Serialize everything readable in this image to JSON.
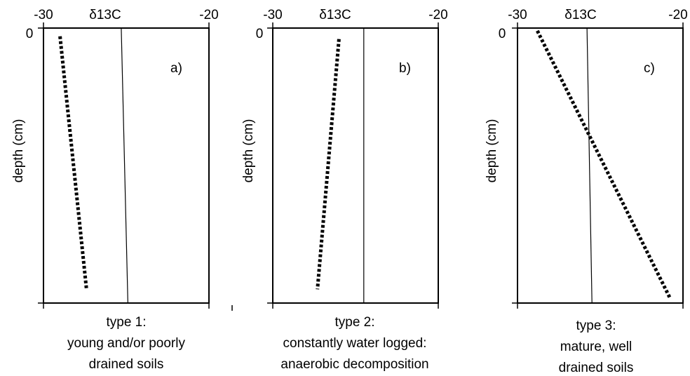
{
  "chart_data": [
    {
      "type": "line",
      "panel_label": "a)",
      "xlabel": "δ13C",
      "ylabel": "depth (cm)",
      "x_ticks": [
        "-30",
        "-20"
      ],
      "y_ticks": [
        "0"
      ],
      "xlim": [
        -30,
        -20
      ],
      "ylim_depth": [
        0,
        100
      ],
      "caption": [
        "type 1:",
        "young and/or poorly",
        "drained soils"
      ],
      "series": [
        {
          "style": "dotted",
          "points": [
            {
              "x": -29.0,
              "depth": 3
            },
            {
              "x": -27.4,
              "depth": 95
            }
          ]
        },
        {
          "style": "solid",
          "points": [
            {
              "x": -25.3,
              "depth": 0
            },
            {
              "x": -24.9,
              "depth": 100
            }
          ]
        }
      ]
    },
    {
      "type": "line",
      "panel_label": "b)",
      "xlabel": "δ13C",
      "ylabel": "depth (cm)",
      "x_ticks": [
        "-30",
        "-20"
      ],
      "y_ticks": [
        "0"
      ],
      "xlim": [
        -30,
        -20
      ],
      "ylim_depth": [
        0,
        100
      ],
      "caption": [
        "type 2:",
        "constantly water logged:",
        "anaerobic decomposition"
      ],
      "series": [
        {
          "style": "dotted",
          "points": [
            {
              "x": -26.0,
              "depth": 4
            },
            {
              "x": -27.3,
              "depth": 95
            }
          ]
        },
        {
          "style": "solid",
          "points": [
            {
              "x": -24.5,
              "depth": 0
            },
            {
              "x": -24.5,
              "depth": 100
            }
          ]
        }
      ]
    },
    {
      "type": "line",
      "panel_label": "c)",
      "xlabel": "δ13C",
      "ylabel": "depth (cm)",
      "x_ticks": [
        "-30",
        "-20"
      ],
      "y_ticks": [
        "0"
      ],
      "xlim": [
        -30,
        -20
      ],
      "ylim_depth": [
        0,
        100
      ],
      "caption": [
        "type 3:",
        "mature, well",
        "drained soils"
      ],
      "series": [
        {
          "style": "dotted",
          "points": [
            {
              "x": -28.8,
              "depth": 1
            },
            {
              "x": -20.8,
              "depth": 98
            }
          ]
        },
        {
          "style": "solid",
          "points": [
            {
              "x": -25.8,
              "depth": 0
            },
            {
              "x": -25.5,
              "depth": 100
            }
          ]
        }
      ]
    }
  ]
}
